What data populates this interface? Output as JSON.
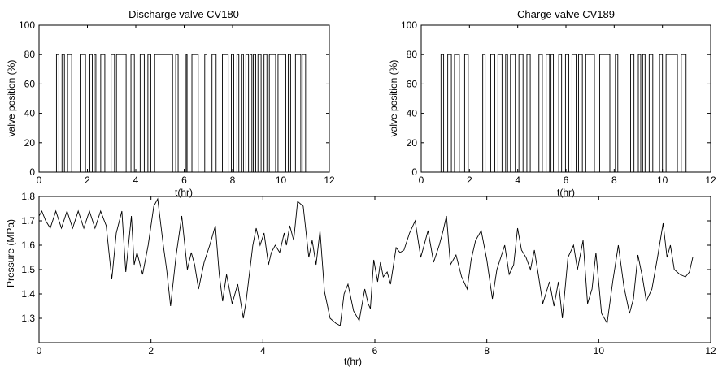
{
  "chart_data": [
    {
      "type": "line",
      "title": "Discharge valve CV180",
      "xlabel": "t(hr)",
      "ylabel": "valve position (%)",
      "xlim": [
        0,
        12
      ],
      "ylim": [
        0,
        100
      ],
      "xticks": [
        0,
        2,
        4,
        6,
        8,
        10,
        12
      ],
      "yticks": [
        0,
        20,
        40,
        60,
        80,
        100
      ],
      "grid": false,
      "style": "step",
      "line_color": "#000000",
      "on_value": 80,
      "off_value": 0,
      "open_intervals": [
        [
          0.72,
          0.82
        ],
        [
          0.95,
          1.05
        ],
        [
          1.18,
          1.35
        ],
        [
          1.7,
          1.92
        ],
        [
          2.1,
          2.2
        ],
        [
          2.28,
          2.35
        ],
        [
          2.55,
          2.72
        ],
        [
          2.98,
          3.12
        ],
        [
          3.2,
          3.6
        ],
        [
          3.8,
          3.94
        ],
        [
          4.18,
          4.35
        ],
        [
          4.5,
          4.62
        ],
        [
          4.78,
          5.52
        ],
        [
          5.65,
          5.75
        ],
        [
          6.08,
          6.12
        ],
        [
          6.32,
          6.58
        ],
        [
          6.85,
          6.94
        ],
        [
          7.15,
          7.32
        ],
        [
          7.58,
          7.82
        ],
        [
          7.95,
          8.05
        ],
        [
          8.18,
          8.26
        ],
        [
          8.36,
          8.45
        ],
        [
          8.55,
          8.66
        ],
        [
          8.72,
          8.8
        ],
        [
          8.86,
          8.96
        ],
        [
          9.05,
          9.18
        ],
        [
          9.3,
          9.42
        ],
        [
          9.52,
          9.78
        ],
        [
          9.88,
          10.2
        ],
        [
          10.3,
          10.4
        ],
        [
          10.6,
          10.82
        ],
        [
          10.88,
          11.02
        ]
      ]
    },
    {
      "type": "line",
      "title": "Charge valve CV189",
      "xlabel": "t(hr)",
      "ylabel": "valve position (%)",
      "xlim": [
        0,
        12
      ],
      "ylim": [
        0,
        100
      ],
      "xticks": [
        0,
        2,
        4,
        6,
        8,
        10,
        12
      ],
      "yticks": [
        0,
        20,
        40,
        60,
        80,
        100
      ],
      "grid": false,
      "style": "step",
      "line_color": "#000000",
      "on_value": 80,
      "off_value": 0,
      "open_intervals": [
        [
          0.82,
          0.93
        ],
        [
          1.1,
          1.25
        ],
        [
          1.38,
          1.58
        ],
        [
          1.8,
          1.95
        ],
        [
          2.55,
          2.65
        ],
        [
          2.88,
          3.05
        ],
        [
          3.18,
          3.35
        ],
        [
          3.5,
          3.58
        ],
        [
          3.7,
          3.9
        ],
        [
          4.05,
          4.22
        ],
        [
          4.38,
          4.52
        ],
        [
          4.88,
          5.02
        ],
        [
          5.18,
          5.32
        ],
        [
          5.38,
          5.48
        ],
        [
          5.7,
          5.82
        ],
        [
          5.98,
          6.12
        ],
        [
          6.25,
          6.42
        ],
        [
          6.52,
          6.68
        ],
        [
          6.82,
          7.18
        ],
        [
          7.4,
          7.82
        ],
        [
          8.05,
          8.15
        ],
        [
          8.68,
          8.82
        ],
        [
          9.0,
          9.1
        ],
        [
          9.18,
          9.28
        ],
        [
          9.45,
          9.6
        ],
        [
          9.88,
          10.0
        ],
        [
          10.15,
          10.62
        ],
        [
          10.78,
          10.98
        ]
      ]
    },
    {
      "type": "line",
      "title": "",
      "xlabel": "t(hr)",
      "ylabel": "Pressure (MPa)",
      "xlim": [
        0,
        12
      ],
      "ylim": [
        1.2,
        1.8
      ],
      "xticks": [
        0,
        2,
        4,
        6,
        8,
        10,
        12
      ],
      "yticks": [
        1.3,
        1.4,
        1.5,
        1.6,
        1.7,
        1.8
      ],
      "grid": false,
      "line_color": "#000000",
      "x": [
        0,
        0.05,
        0.12,
        0.2,
        0.3,
        0.4,
        0.5,
        0.6,
        0.7,
        0.8,
        0.9,
        1.0,
        1.1,
        1.2,
        1.3,
        1.38,
        1.48,
        1.55,
        1.65,
        1.7,
        1.75,
        1.85,
        1.95,
        2.05,
        2.12,
        2.22,
        2.28,
        2.35,
        2.45,
        2.55,
        2.65,
        2.72,
        2.78,
        2.85,
        2.95,
        3.05,
        3.15,
        3.22,
        3.28,
        3.35,
        3.45,
        3.55,
        3.65,
        3.7,
        3.82,
        3.88,
        3.95,
        4.02,
        4.1,
        4.15,
        4.22,
        4.3,
        4.38,
        4.42,
        4.48,
        4.55,
        4.62,
        4.72,
        4.82,
        4.88,
        4.95,
        5.02,
        5.1,
        5.2,
        5.3,
        5.38,
        5.45,
        5.52,
        5.62,
        5.72,
        5.82,
        5.88,
        5.92,
        5.98,
        6.05,
        6.1,
        6.15,
        6.22,
        6.28,
        6.38,
        6.45,
        6.52,
        6.62,
        6.72,
        6.82,
        6.88,
        6.95,
        7.05,
        7.15,
        7.22,
        7.28,
        7.35,
        7.45,
        7.55,
        7.65,
        7.72,
        7.8,
        7.9,
        8.0,
        8.1,
        8.18,
        8.25,
        8.32,
        8.4,
        8.48,
        8.55,
        8.62,
        8.7,
        8.78,
        8.85,
        8.92,
        9.0,
        9.08,
        9.12,
        9.2,
        9.28,
        9.35,
        9.45,
        9.55,
        9.62,
        9.72,
        9.8,
        9.88,
        9.95,
        10.05,
        10.15,
        10.25,
        10.35,
        10.45,
        10.55,
        10.62,
        10.7,
        10.78,
        10.85,
        10.95,
        11.05,
        11.15,
        11.22,
        11.28,
        11.35,
        11.45,
        11.55,
        11.62,
        11.68
      ],
      "y": [
        1.72,
        1.74,
        1.7,
        1.67,
        1.74,
        1.67,
        1.74,
        1.67,
        1.74,
        1.67,
        1.74,
        1.67,
        1.74,
        1.68,
        1.46,
        1.65,
        1.74,
        1.49,
        1.72,
        1.52,
        1.57,
        1.48,
        1.6,
        1.76,
        1.79,
        1.6,
        1.5,
        1.35,
        1.56,
        1.72,
        1.5,
        1.57,
        1.52,
        1.42,
        1.53,
        1.6,
        1.68,
        1.48,
        1.37,
        1.48,
        1.36,
        1.44,
        1.3,
        1.37,
        1.6,
        1.67,
        1.6,
        1.65,
        1.52,
        1.57,
        1.6,
        1.57,
        1.65,
        1.6,
        1.68,
        1.62,
        1.78,
        1.76,
        1.55,
        1.62,
        1.52,
        1.66,
        1.41,
        1.3,
        1.28,
        1.27,
        1.4,
        1.44,
        1.33,
        1.29,
        1.42,
        1.36,
        1.34,
        1.54,
        1.45,
        1.53,
        1.47,
        1.49,
        1.44,
        1.59,
        1.57,
        1.58,
        1.65,
        1.7,
        1.55,
        1.6,
        1.66,
        1.53,
        1.6,
        1.66,
        1.72,
        1.52,
        1.56,
        1.47,
        1.42,
        1.54,
        1.62,
        1.66,
        1.54,
        1.38,
        1.5,
        1.55,
        1.6,
        1.48,
        1.52,
        1.67,
        1.58,
        1.55,
        1.5,
        1.58,
        1.48,
        1.36,
        1.42,
        1.45,
        1.35,
        1.45,
        1.3,
        1.55,
        1.6,
        1.5,
        1.62,
        1.36,
        1.42,
        1.57,
        1.32,
        1.28,
        1.45,
        1.6,
        1.43,
        1.32,
        1.38,
        1.56,
        1.47,
        1.37,
        1.42,
        1.55,
        1.69,
        1.55,
        1.6,
        1.5,
        1.48,
        1.47,
        1.49,
        1.55
      ]
    }
  ]
}
